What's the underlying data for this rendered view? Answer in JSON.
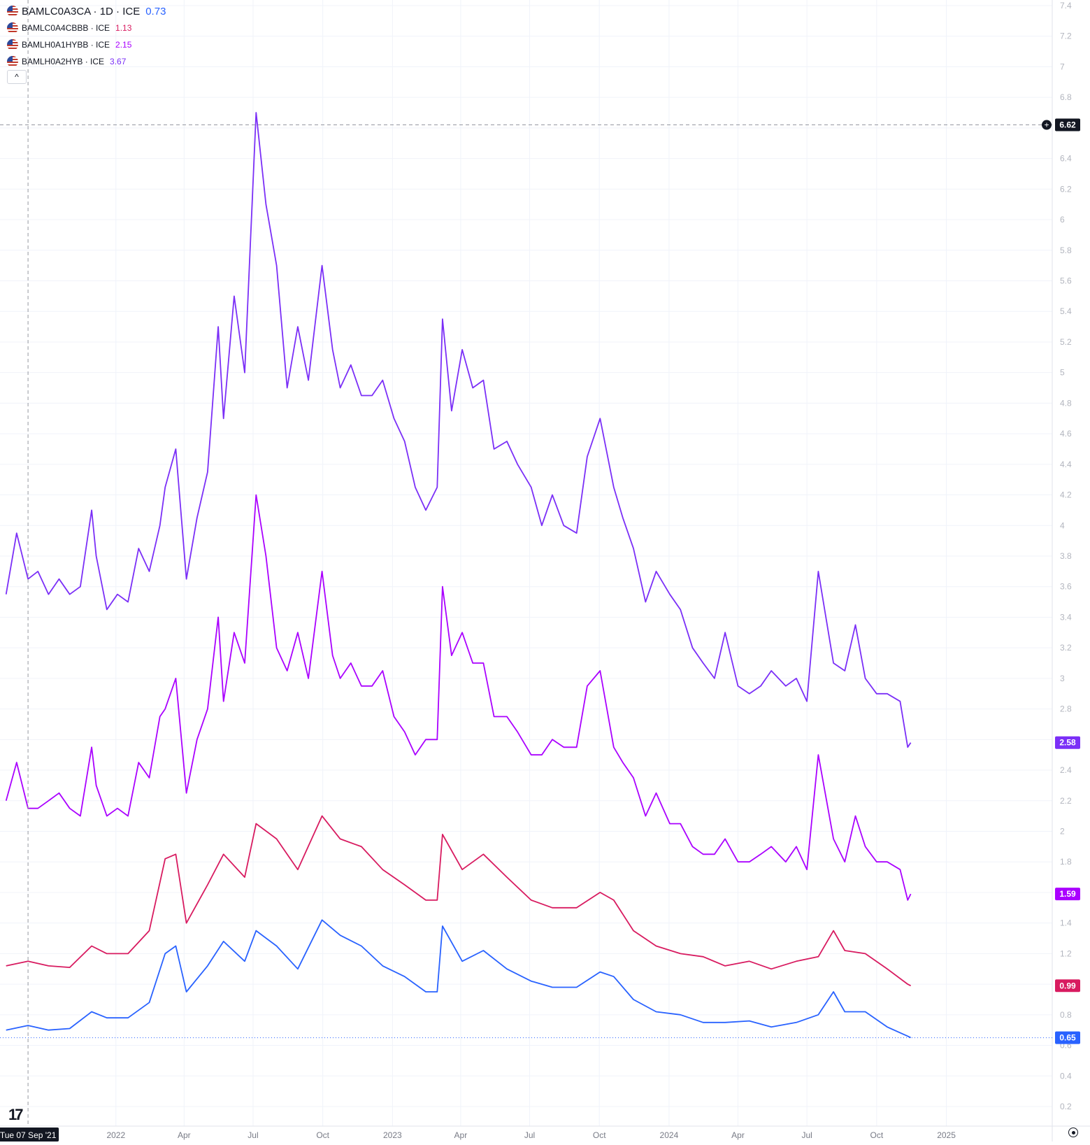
{
  "legend": [
    {
      "symbol": "BAMLC0A3CA · 1D · ICE",
      "value": "0.73",
      "color": "#2962ff"
    },
    {
      "symbol": "BAMLC0A4CBBB · ICE",
      "value": "1.13",
      "color": "#d81b60"
    },
    {
      "symbol": "BAMLH0A1HYBB · ICE",
      "value": "2.15",
      "color": "#aa00ff"
    },
    {
      "symbol": "BAMLH0A2HYB · ICE",
      "value": "3.67",
      "color": "#7b2ff7"
    }
  ],
  "collapse_label": "^",
  "crosshair": {
    "date_label": "Tue 07 Sep '21",
    "price_label": "6.62"
  },
  "logo_text": "17",
  "chart_data": {
    "type": "line",
    "ylim": [
      0.1,
      7.45
    ],
    "y_ticks": [
      "0.2",
      "0.4",
      "0.6",
      "0.8",
      "1",
      "1.2",
      "1.4",
      "1.6",
      "1.8",
      "2",
      "2.2",
      "2.4",
      "2.6",
      "2.8",
      "3",
      "3.2",
      "3.4",
      "3.6",
      "3.8",
      "4",
      "4.2",
      "4.4",
      "4.6",
      "4.8",
      "5",
      "5.2",
      "5.4",
      "5.6",
      "5.8",
      "6",
      "6.2",
      "6.4",
      "6.6",
      "6.8",
      "7",
      "7.2",
      "7.4"
    ],
    "x_ticks": [
      {
        "label": "2022",
        "date": "2022-01-01"
      },
      {
        "label": "Apr",
        "date": "2022-04-01"
      },
      {
        "label": "Jul",
        "date": "2022-07-01"
      },
      {
        "label": "Oct",
        "date": "2022-10-01"
      },
      {
        "label": "2023",
        "date": "2023-01-01"
      },
      {
        "label": "Apr",
        "date": "2023-04-01"
      },
      {
        "label": "Jul",
        "date": "2023-07-01"
      },
      {
        "label": "Oct",
        "date": "2023-10-01"
      },
      {
        "label": "2024",
        "date": "2024-01-01"
      },
      {
        "label": "Apr",
        "date": "2024-04-01"
      },
      {
        "label": "Jul",
        "date": "2024-07-01"
      },
      {
        "label": "Oct",
        "date": "2024-10-01"
      },
      {
        "label": "2025",
        "date": "2025-01-01"
      }
    ],
    "series": [
      {
        "name": "BAMLH0A2HYB",
        "color": "#7b2ff7",
        "last_label": "2.58",
        "dates": [
          "2021-08-09",
          "2021-08-23",
          "2021-09-07",
          "2021-09-20",
          "2021-10-04",
          "2021-10-18",
          "2021-11-01",
          "2021-11-15",
          "2021-11-30",
          "2021-12-06",
          "2021-12-20",
          "2022-01-03",
          "2022-01-17",
          "2022-01-31",
          "2022-02-14",
          "2022-02-28",
          "2022-03-07",
          "2022-03-21",
          "2022-04-04",
          "2022-04-18",
          "2022-05-02",
          "2022-05-16",
          "2022-05-23",
          "2022-06-06",
          "2022-06-20",
          "2022-07-05",
          "2022-07-18",
          "2022-08-01",
          "2022-08-15",
          "2022-08-29",
          "2022-09-12",
          "2022-09-30",
          "2022-10-14",
          "2022-10-24",
          "2022-11-07",
          "2022-11-21",
          "2022-12-05",
          "2022-12-19",
          "2023-01-03",
          "2023-01-17",
          "2023-01-31",
          "2023-02-14",
          "2023-03-01",
          "2023-03-08",
          "2023-03-20",
          "2023-04-03",
          "2023-04-17",
          "2023-05-01",
          "2023-05-15",
          "2023-06-01",
          "2023-06-15",
          "2023-07-03",
          "2023-07-17",
          "2023-07-31",
          "2023-08-15",
          "2023-09-01",
          "2023-09-15",
          "2023-10-02",
          "2023-10-20",
          "2023-11-01",
          "2023-11-15",
          "2023-12-01",
          "2023-12-15",
          "2024-01-02",
          "2024-01-16",
          "2024-02-01",
          "2024-02-15",
          "2024-03-01",
          "2024-03-15",
          "2024-04-01",
          "2024-04-16",
          "2024-05-01",
          "2024-05-15",
          "2024-06-03",
          "2024-06-17",
          "2024-07-01",
          "2024-07-16",
          "2024-08-05",
          "2024-08-20",
          "2024-09-03",
          "2024-09-16",
          "2024-10-01",
          "2024-10-15",
          "2024-11-01",
          "2024-11-11",
          "2024-11-15"
        ],
        "values": [
          3.55,
          3.95,
          3.65,
          3.7,
          3.55,
          3.65,
          3.55,
          3.6,
          4.1,
          3.8,
          3.45,
          3.55,
          3.5,
          3.85,
          3.7,
          4.0,
          4.25,
          4.5,
          3.65,
          4.05,
          4.35,
          5.3,
          4.7,
          5.5,
          5.0,
          6.7,
          6.1,
          5.7,
          4.9,
          5.3,
          4.95,
          5.7,
          5.15,
          4.9,
          5.05,
          4.85,
          4.85,
          4.95,
          4.7,
          4.55,
          4.25,
          4.1,
          4.25,
          5.35,
          4.75,
          5.15,
          4.9,
          4.95,
          4.5,
          4.55,
          4.4,
          4.25,
          4.0,
          4.2,
          4.0,
          3.95,
          4.45,
          4.7,
          4.25,
          4.05,
          3.85,
          3.5,
          3.7,
          3.55,
          3.45,
          3.2,
          3.1,
          3.0,
          3.3,
          2.95,
          2.9,
          2.95,
          3.05,
          2.95,
          3.0,
          2.85,
          3.7,
          3.1,
          3.05,
          3.35,
          3.0,
          2.9,
          2.9,
          2.85,
          2.55,
          2.58
        ]
      },
      {
        "name": "BAMLH0A1HYBB",
        "color": "#aa00ff",
        "last_label": "1.59",
        "dates": [
          "2021-08-09",
          "2021-08-23",
          "2021-09-07",
          "2021-09-20",
          "2021-10-04",
          "2021-10-18",
          "2021-11-01",
          "2021-11-15",
          "2021-11-30",
          "2021-12-06",
          "2021-12-20",
          "2022-01-03",
          "2022-01-17",
          "2022-01-31",
          "2022-02-14",
          "2022-02-28",
          "2022-03-07",
          "2022-03-21",
          "2022-04-04",
          "2022-04-18",
          "2022-05-02",
          "2022-05-16",
          "2022-05-23",
          "2022-06-06",
          "2022-06-20",
          "2022-07-05",
          "2022-07-18",
          "2022-08-01",
          "2022-08-15",
          "2022-08-29",
          "2022-09-12",
          "2022-09-30",
          "2022-10-14",
          "2022-10-24",
          "2022-11-07",
          "2022-11-21",
          "2022-12-05",
          "2022-12-19",
          "2023-01-03",
          "2023-01-17",
          "2023-01-31",
          "2023-02-14",
          "2023-03-01",
          "2023-03-08",
          "2023-03-20",
          "2023-04-03",
          "2023-04-17",
          "2023-05-01",
          "2023-05-15",
          "2023-06-01",
          "2023-06-15",
          "2023-07-03",
          "2023-07-17",
          "2023-07-31",
          "2023-08-15",
          "2023-09-01",
          "2023-09-15",
          "2023-10-02",
          "2023-10-20",
          "2023-11-01",
          "2023-11-15",
          "2023-12-01",
          "2023-12-15",
          "2024-01-02",
          "2024-01-16",
          "2024-02-01",
          "2024-02-15",
          "2024-03-01",
          "2024-03-15",
          "2024-04-01",
          "2024-04-16",
          "2024-05-01",
          "2024-05-15",
          "2024-06-03",
          "2024-06-17",
          "2024-07-01",
          "2024-07-16",
          "2024-08-05",
          "2024-08-20",
          "2024-09-03",
          "2024-09-16",
          "2024-10-01",
          "2024-10-15",
          "2024-11-01",
          "2024-11-11",
          "2024-11-15"
        ],
        "values": [
          2.2,
          2.45,
          2.15,
          2.15,
          2.2,
          2.25,
          2.15,
          2.1,
          2.55,
          2.3,
          2.1,
          2.15,
          2.1,
          2.45,
          2.35,
          2.75,
          2.8,
          3.0,
          2.25,
          2.6,
          2.8,
          3.4,
          2.85,
          3.3,
          3.1,
          4.2,
          3.8,
          3.2,
          3.05,
          3.3,
          3.0,
          3.7,
          3.15,
          3.0,
          3.1,
          2.95,
          2.95,
          3.05,
          2.75,
          2.65,
          2.5,
          2.6,
          2.6,
          3.6,
          3.15,
          3.3,
          3.1,
          3.1,
          2.75,
          2.75,
          2.65,
          2.5,
          2.5,
          2.6,
          2.55,
          2.55,
          2.95,
          3.05,
          2.55,
          2.45,
          2.35,
          2.1,
          2.25,
          2.05,
          2.05,
          1.9,
          1.85,
          1.85,
          1.95,
          1.8,
          1.8,
          1.85,
          1.9,
          1.8,
          1.9,
          1.75,
          2.5,
          1.95,
          1.8,
          2.1,
          1.9,
          1.8,
          1.8,
          1.75,
          1.55,
          1.59
        ]
      },
      {
        "name": "BAMLC0A4CBBB",
        "color": "#d81b60",
        "last_label": "0.99",
        "dates": [
          "2021-08-09",
          "2021-09-07",
          "2021-10-04",
          "2021-11-01",
          "2021-11-30",
          "2021-12-20",
          "2022-01-17",
          "2022-02-14",
          "2022-03-07",
          "2022-03-21",
          "2022-04-04",
          "2022-05-02",
          "2022-05-23",
          "2022-06-20",
          "2022-07-05",
          "2022-08-01",
          "2022-08-29",
          "2022-09-30",
          "2022-10-24",
          "2022-11-21",
          "2022-12-19",
          "2023-01-17",
          "2023-02-14",
          "2023-03-01",
          "2023-03-08",
          "2023-04-03",
          "2023-05-01",
          "2023-06-01",
          "2023-07-03",
          "2023-07-31",
          "2023-09-01",
          "2023-10-02",
          "2023-10-20",
          "2023-11-15",
          "2023-12-15",
          "2024-01-16",
          "2024-02-15",
          "2024-03-15",
          "2024-04-16",
          "2024-05-15",
          "2024-06-17",
          "2024-07-16",
          "2024-08-05",
          "2024-08-20",
          "2024-09-16",
          "2024-10-15",
          "2024-11-11",
          "2024-11-15"
        ],
        "values": [
          1.12,
          1.15,
          1.12,
          1.11,
          1.25,
          1.2,
          1.2,
          1.35,
          1.82,
          1.85,
          1.4,
          1.65,
          1.85,
          1.7,
          2.05,
          1.95,
          1.75,
          2.1,
          1.95,
          1.9,
          1.75,
          1.65,
          1.55,
          1.55,
          1.98,
          1.75,
          1.85,
          1.7,
          1.55,
          1.5,
          1.5,
          1.6,
          1.55,
          1.35,
          1.25,
          1.2,
          1.18,
          1.12,
          1.15,
          1.1,
          1.15,
          1.18,
          1.35,
          1.22,
          1.2,
          1.1,
          1.0,
          0.99
        ]
      },
      {
        "name": "BAMLC0A3CA",
        "color": "#2962ff",
        "last_label": "0.65",
        "dates": [
          "2021-08-09",
          "2021-09-07",
          "2021-10-04",
          "2021-11-01",
          "2021-11-30",
          "2021-12-20",
          "2022-01-17",
          "2022-02-14",
          "2022-03-07",
          "2022-03-21",
          "2022-04-04",
          "2022-05-02",
          "2022-05-23",
          "2022-06-20",
          "2022-07-05",
          "2022-08-01",
          "2022-08-29",
          "2022-09-30",
          "2022-10-24",
          "2022-11-21",
          "2022-12-19",
          "2023-01-17",
          "2023-02-14",
          "2023-03-01",
          "2023-03-08",
          "2023-04-03",
          "2023-05-01",
          "2023-06-01",
          "2023-07-03",
          "2023-07-31",
          "2023-09-01",
          "2023-10-02",
          "2023-10-20",
          "2023-11-15",
          "2023-12-15",
          "2024-01-16",
          "2024-02-15",
          "2024-03-15",
          "2024-04-16",
          "2024-05-15",
          "2024-06-17",
          "2024-07-16",
          "2024-08-05",
          "2024-08-20",
          "2024-09-16",
          "2024-10-15",
          "2024-11-11",
          "2024-11-15"
        ],
        "values": [
          0.7,
          0.73,
          0.7,
          0.71,
          0.82,
          0.78,
          0.78,
          0.88,
          1.2,
          1.25,
          0.95,
          1.12,
          1.28,
          1.15,
          1.35,
          1.25,
          1.1,
          1.42,
          1.32,
          1.25,
          1.12,
          1.05,
          0.95,
          0.95,
          1.38,
          1.15,
          1.22,
          1.1,
          1.02,
          0.98,
          0.98,
          1.08,
          1.05,
          0.9,
          0.82,
          0.8,
          0.75,
          0.75,
          0.76,
          0.72,
          0.75,
          0.8,
          0.95,
          0.82,
          0.82,
          0.72,
          0.66,
          0.65
        ]
      }
    ]
  }
}
